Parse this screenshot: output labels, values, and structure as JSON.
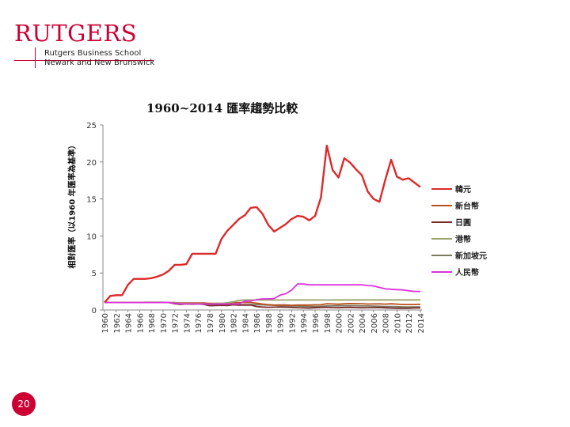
{
  "logo": {
    "wordmark": "RUTGERS",
    "line1": "Rutgers Business School",
    "line2": "Newark and New Brunswick"
  },
  "page_number": "20",
  "chart_data": {
    "type": "line",
    "title": "1960~2014 匯率趨勢比較",
    "xlabel": "",
    "ylabel": "相對匯率（以1960 年匯率為基準）",
    "ylim": [
      0,
      25
    ],
    "yticks": [
      0,
      5,
      10,
      15,
      20,
      25
    ],
    "grid": false,
    "legend_position": "right",
    "x": [
      "1960",
      "1961",
      "1962",
      "1963",
      "1964",
      "1965",
      "1966",
      "1967",
      "1968",
      "1969",
      "1970",
      "1971",
      "1972",
      "1973",
      "1974",
      "1975",
      "1976",
      "1977",
      "1978",
      "1979",
      "1980",
      "1981",
      "1982",
      "1983",
      "1984",
      "1985",
      "1986",
      "1987",
      "1988",
      "1989",
      "1990",
      "1991",
      "1992",
      "1993",
      "1994",
      "1995",
      "1996",
      "1997",
      "1998",
      "1999",
      "2000",
      "2001",
      "2002",
      "2003",
      "2004",
      "2005",
      "2006",
      "2007",
      "2008",
      "2009",
      "2010",
      "2011",
      "2012",
      "2013",
      "2014"
    ],
    "xtick_labels": [
      "1960",
      "1962",
      "1964",
      "1966",
      "1968",
      "1970",
      "1972",
      "1974",
      "1976",
      "1978",
      "1980",
      "1982",
      "1984",
      "1986",
      "1988",
      "1990",
      "1992",
      "1994",
      "1996",
      "1998",
      "2000",
      "2002",
      "2004",
      "2006",
      "2008",
      "2010",
      "2012",
      "2014"
    ],
    "series": [
      {
        "name": "韓元",
        "color": "#dd2a2a",
        "values": [
          1,
          1.9,
          2.0,
          2.0,
          3.4,
          4.2,
          4.2,
          4.2,
          4.3,
          4.5,
          4.8,
          5.3,
          6.1,
          6.1,
          6.2,
          7.6,
          7.6,
          7.6,
          7.6,
          7.6,
          9.6,
          10.7,
          11.5,
          12.3,
          12.8,
          13.8,
          13.9,
          13.0,
          11.5,
          10.6,
          11.1,
          11.6,
          12.3,
          12.7,
          12.6,
          12.1,
          12.7,
          15.2,
          22.2,
          18.9,
          17.9,
          20.5,
          19.9,
          19.0,
          18.2,
          16.0,
          15.0,
          14.6,
          17.6,
          20.3,
          18.0,
          17.6,
          17.8,
          17.2,
          16.6
        ]
      },
      {
        "name": "新台幣",
        "color": "#b8501f",
        "values": [
          1,
          1,
          1,
          1,
          1,
          1,
          1,
          1,
          1,
          1,
          1,
          1,
          1,
          0.95,
          0.95,
          0.95,
          0.95,
          0.95,
          0.9,
          0.9,
          0.9,
          0.92,
          0.98,
          1.0,
          1.0,
          1.0,
          0.92,
          0.8,
          0.72,
          0.66,
          0.67,
          0.67,
          0.63,
          0.66,
          0.66,
          0.66,
          0.69,
          0.71,
          0.84,
          0.81,
          0.78,
          0.84,
          0.87,
          0.86,
          0.84,
          0.8,
          0.81,
          0.82,
          0.79,
          0.83,
          0.79,
          0.74,
          0.74,
          0.74,
          0.76
        ]
      },
      {
        "name": "日圓",
        "color": "#7a2a2a",
        "values": [
          1,
          1,
          1,
          1,
          1,
          1,
          1,
          1,
          1,
          1,
          1,
          1,
          0.84,
          0.75,
          0.81,
          0.82,
          0.82,
          0.75,
          0.58,
          0.6,
          0.63,
          0.61,
          0.69,
          0.66,
          0.66,
          0.66,
          0.47,
          0.4,
          0.36,
          0.38,
          0.4,
          0.37,
          0.35,
          0.31,
          0.28,
          0.26,
          0.3,
          0.34,
          0.36,
          0.32,
          0.3,
          0.34,
          0.35,
          0.32,
          0.3,
          0.31,
          0.32,
          0.33,
          0.29,
          0.26,
          0.24,
          0.22,
          0.22,
          0.27,
          0.29
        ]
      },
      {
        "name": "港幣",
        "color": "#9aa36b",
        "values": [
          1,
          1,
          1,
          1,
          1,
          1,
          1,
          1.05,
          1.05,
          1.05,
          1.05,
          1.0,
          0.98,
          0.88,
          0.85,
          0.86,
          0.85,
          0.82,
          0.8,
          0.88,
          0.87,
          0.98,
          1.1,
          1.3,
          1.35,
          1.35,
          1.35,
          1.35,
          1.35,
          1.35,
          1.35,
          1.35,
          1.35,
          1.35,
          1.35,
          1.35,
          1.35,
          1.35,
          1.35,
          1.35,
          1.36,
          1.36,
          1.36,
          1.36,
          1.36,
          1.36,
          1.36,
          1.36,
          1.36,
          1.36,
          1.36,
          1.36,
          1.36,
          1.36,
          1.36
        ]
      },
      {
        "name": "新加坡元",
        "color": "#7a7a60",
        "values": [
          1,
          1,
          1,
          1,
          1,
          1,
          1,
          1,
          1,
          1,
          1,
          1,
          0.92,
          0.82,
          0.81,
          0.77,
          0.82,
          0.8,
          0.77,
          0.72,
          0.7,
          0.69,
          0.7,
          0.69,
          0.7,
          0.72,
          0.72,
          0.69,
          0.66,
          0.64,
          0.59,
          0.57,
          0.54,
          0.53,
          0.5,
          0.47,
          0.46,
          0.49,
          0.55,
          0.56,
          0.57,
          0.59,
          0.58,
          0.57,
          0.55,
          0.54,
          0.52,
          0.49,
          0.46,
          0.47,
          0.45,
          0.41,
          0.41,
          0.41,
          0.41
        ]
      },
      {
        "name": "人民幣",
        "color": "#dd33dd",
        "values": [
          1,
          1,
          1,
          1,
          1,
          1,
          1,
          1,
          1,
          1,
          1,
          1,
          0.92,
          0.81,
          0.81,
          0.81,
          0.8,
          0.8,
          0.8,
          0.8,
          0.8,
          0.8,
          0.8,
          0.8,
          1.2,
          1.2,
          1.4,
          1.5,
          1.5,
          1.55,
          2.0,
          2.2,
          2.7,
          3.5,
          3.5,
          3.4,
          3.4,
          3.4,
          3.4,
          3.4,
          3.4,
          3.4,
          3.4,
          3.4,
          3.4,
          3.3,
          3.25,
          3.05,
          2.85,
          2.8,
          2.75,
          2.7,
          2.6,
          2.5,
          2.5
        ]
      }
    ]
  }
}
